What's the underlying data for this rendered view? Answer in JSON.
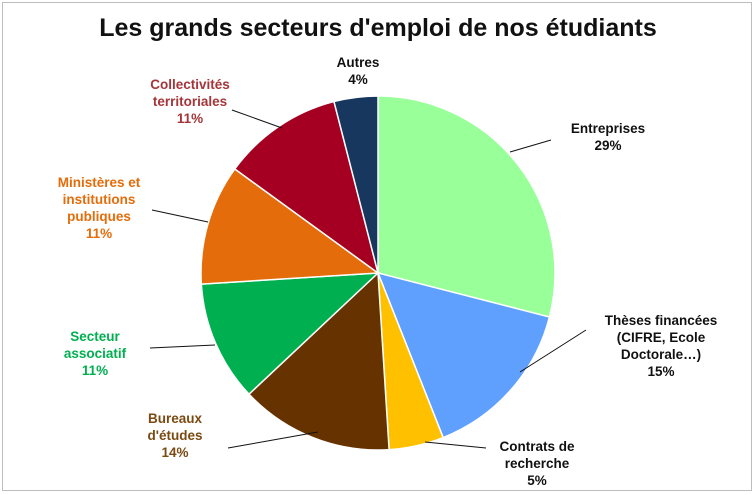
{
  "chart_data": {
    "type": "pie",
    "title": "Les grands secteurs d'emploi de nos étudiants",
    "slices": [
      {
        "label": [
          "Entreprises"
        ],
        "value": 29,
        "pct": "29%",
        "color": "#99ff99",
        "text_color": "#111111"
      },
      {
        "label": [
          "Thèses financées",
          "(CIFRE, Ecole",
          "Doctorale…)"
        ],
        "value": 15,
        "pct": "15%",
        "color": "#5fa0ff",
        "text_color": "#111111"
      },
      {
        "label": [
          "Contrats de",
          "recherche"
        ],
        "value": 5,
        "pct": "5%",
        "color": "#ffc000",
        "text_color": "#111111"
      },
      {
        "label": [
          "Bureaux",
          "d'études"
        ],
        "value": 14,
        "pct": "14%",
        "color": "#663300",
        "text_color": "#7a4a12"
      },
      {
        "label": [
          "Secteur",
          "associatif"
        ],
        "value": 11,
        "pct": "11%",
        "color": "#00b050",
        "text_color": "#00b050"
      },
      {
        "label": [
          "Ministères et",
          "institutions",
          "publiques"
        ],
        "value": 11,
        "pct": "11%",
        "color": "#e46c0a",
        "text_color": "#e46c0a"
      },
      {
        "label": [
          "Collectivités",
          "territoriales"
        ],
        "value": 11,
        "pct": "11%",
        "color": "#a50021",
        "text_color": "#a5353a"
      },
      {
        "label": [
          "Autres"
        ],
        "value": 4,
        "pct": "4%",
        "color": "#17375e",
        "text_color": "#111111"
      }
    ],
    "start_angle_deg": 0,
    "direction": "clockwise",
    "legend": "none"
  }
}
